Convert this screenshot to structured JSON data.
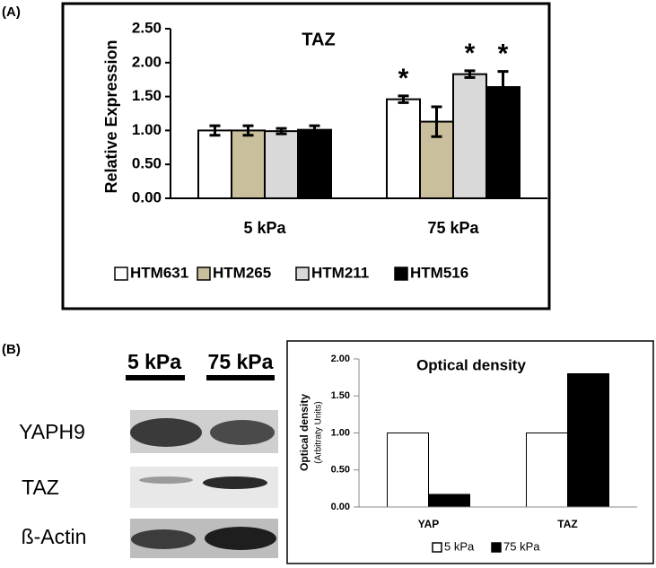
{
  "panel_labels": [
    "(A)",
    "(B)"
  ],
  "chart_data": [
    {
      "type": "bar",
      "title": "TAZ",
      "y_label": "Relative Expression",
      "categories": [
        "5 kPa",
        "75 kPa"
      ],
      "series": [
        {
          "name": "HTM631",
          "color": "#ffffff",
          "values": [
            1.0,
            1.46
          ],
          "errors": [
            0.07,
            0.05
          ],
          "annotations": [
            null,
            "*"
          ]
        },
        {
          "name": "HTM265",
          "color": "#c9bf9c",
          "values": [
            1.0,
            1.13
          ],
          "errors": [
            0.07,
            0.22
          ],
          "annotations": [
            null,
            null
          ]
        },
        {
          "name": "HTM211",
          "color": "#d9d9d9",
          "values": [
            0.99,
            1.83
          ],
          "errors": [
            0.04,
            0.05
          ],
          "annotations": [
            null,
            "*"
          ]
        },
        {
          "name": "HTM516",
          "color": "#000000",
          "values": [
            1.01,
            1.64
          ],
          "errors": [
            0.06,
            0.23
          ],
          "annotations": [
            null,
            "*"
          ]
        }
      ],
      "ylim": [
        0,
        2.5
      ],
      "yticks": [
        {
          "value": 0,
          "label": "0.00"
        },
        {
          "value": 0.5,
          "label": "0.50"
        },
        {
          "value": 1,
          "label": "1.00"
        },
        {
          "value": 1.5,
          "label": "1.50"
        },
        {
          "value": 2,
          "label": "2.00"
        },
        {
          "value": 2.5,
          "label": "2.50"
        }
      ],
      "legend": "bottom"
    },
    {
      "type": "bar",
      "title": "Optical density",
      "y_label": [
        "Optical density",
        "(Arbitraty Units)"
      ],
      "categories": [
        "YAP",
        "TAZ"
      ],
      "series": [
        {
          "name": "5 kPa",
          "color": "#ffffff",
          "values": [
            1.0,
            1.0
          ]
        },
        {
          "name": "75 kPa",
          "color": "#000000",
          "values": [
            0.17,
            1.8
          ]
        }
      ],
      "ylim": [
        0,
        2
      ],
      "yticks": [
        {
          "value": 0,
          "label": "0.00"
        },
        {
          "value": 0.5,
          "label": "0.50"
        },
        {
          "value": 1,
          "label": "1.00"
        },
        {
          "value": 1.5,
          "label": "1.50"
        },
        {
          "value": 2,
          "label": "2.00"
        }
      ],
      "legend": "bottom"
    }
  ],
  "blot": {
    "columns": [
      "5 kPa",
      "75 kPa"
    ],
    "rows": [
      "YAPH9",
      "TAZ",
      "ß-Actin"
    ]
  }
}
